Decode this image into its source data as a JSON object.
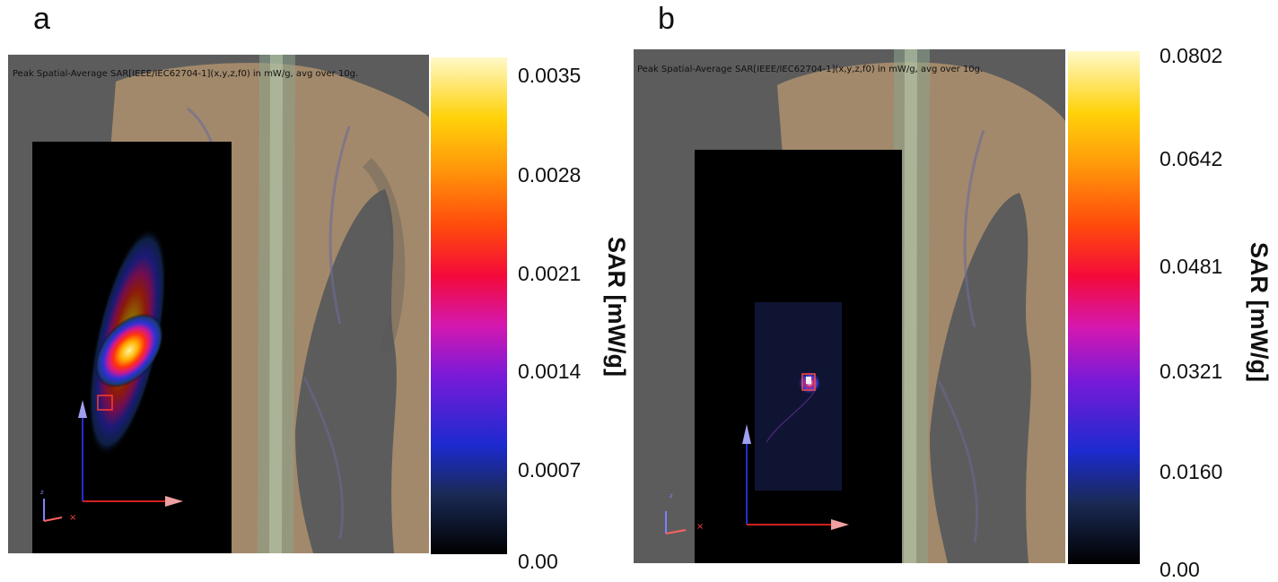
{
  "panels": [
    {
      "letter": "a",
      "caption": "Peak Spatial-Average SAR[IEEE/IEC62704-1](x,y,z,f0) in mW/g, avg over 10g.",
      "unit": "SAR [mW/g]",
      "ticks": [
        "0.0035",
        "0.0028",
        "0.0021",
        "0.0014",
        "0.0007",
        "0.00"
      ]
    },
    {
      "letter": "b",
      "caption": "Peak Spatial-Average SAR[IEEE/IEC62704-1](x,y,z,f0) in mW/g, avg over 10g.",
      "unit": "SAR [mW/g]",
      "ticks": [
        "0.0802",
        "0.0642",
        "0.0481",
        "0.0321",
        "0.0160",
        "0.00"
      ]
    }
  ],
  "colormap": [
    "#000000",
    "#1a2a55",
    "#1c2ad0",
    "#7a1ad8",
    "#d418b0",
    "#f40a3a",
    "#ff4a0c",
    "#ff9a0a",
    "#ffd20a",
    "#fff9c8"
  ]
}
